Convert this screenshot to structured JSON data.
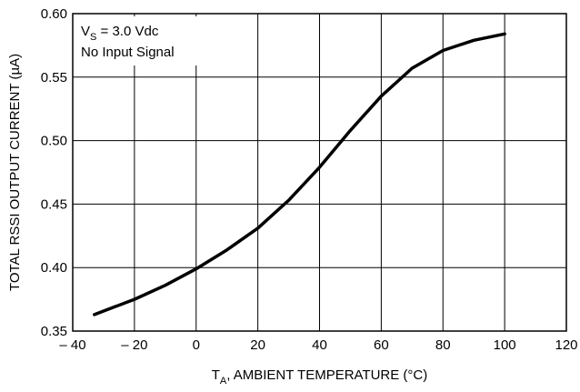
{
  "chart_data": {
    "type": "line",
    "xlabel": {
      "main": "T",
      "sub": "A",
      "rest": ", AMBIENT TEMPERATURE (°C)"
    },
    "ylabel": "TOTAL RSSI OUTPUT CURRENT (µA)",
    "xlim": [
      -40,
      120
    ],
    "ylim": [
      0.35,
      0.6
    ],
    "x_ticks": [
      -40,
      -20,
      0,
      20,
      40,
      60,
      80,
      100,
      120
    ],
    "x_tick_labels": [
      "– 40",
      "– 20",
      "0",
      "20",
      "40",
      "60",
      "80",
      "100",
      "120"
    ],
    "y_ticks": [
      0.35,
      0.4,
      0.45,
      0.5,
      0.55,
      0.6
    ],
    "y_tick_labels": [
      "0.35",
      "0.40",
      "0.45",
      "0.50",
      "0.55",
      "0.60"
    ],
    "grid": true,
    "annotation": {
      "line1": {
        "main": "V",
        "sub": "S",
        "rest": " = 3.0 Vdc"
      },
      "line2": "No Input Signal"
    },
    "series": [
      {
        "x": [
          -33,
          -20,
          -10,
          0,
          10,
          20,
          30,
          40,
          50,
          60,
          70,
          80,
          90,
          100
        ],
        "y": [
          0.363,
          0.375,
          0.386,
          0.399,
          0.414,
          0.431,
          0.453,
          0.479,
          0.508,
          0.535,
          0.557,
          0.571,
          0.579,
          0.584
        ],
        "color": "#000000"
      }
    ]
  }
}
